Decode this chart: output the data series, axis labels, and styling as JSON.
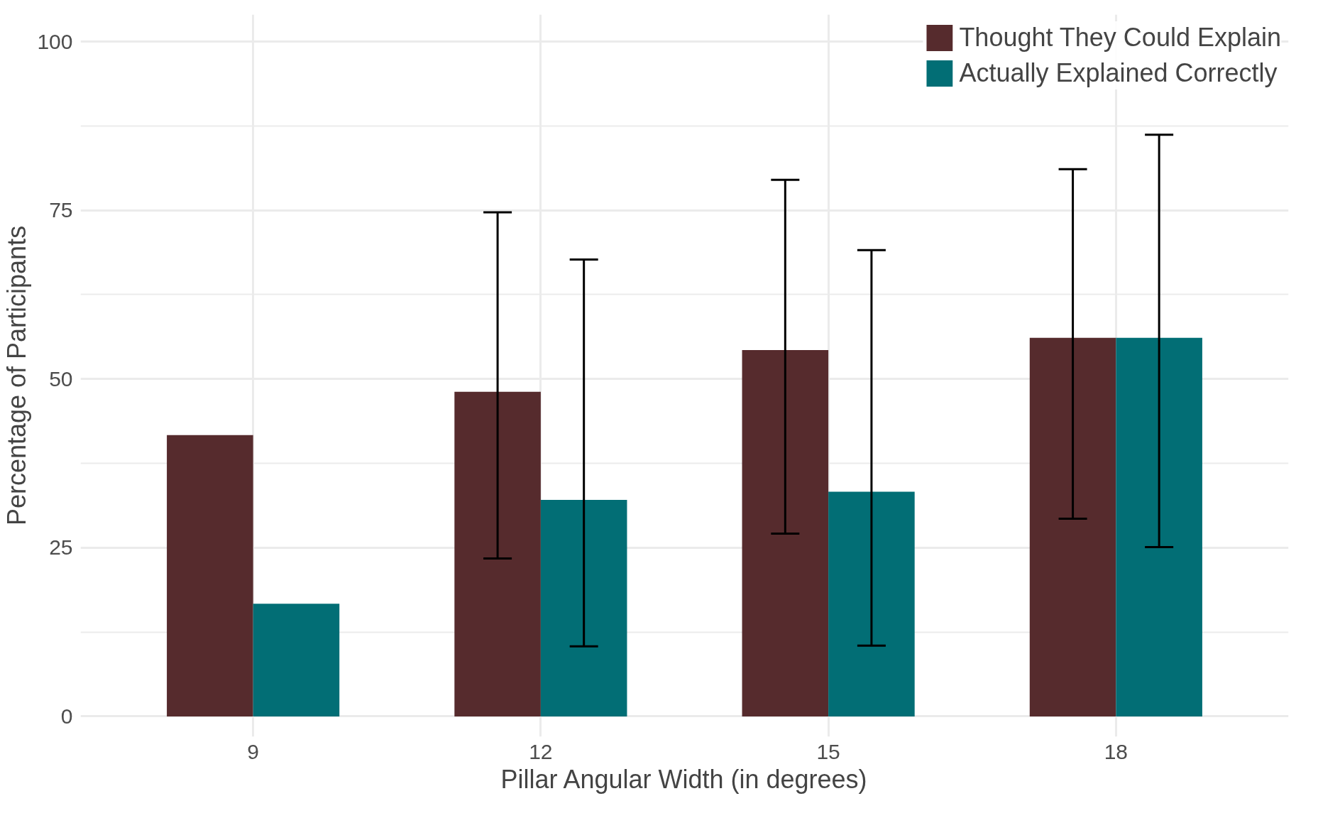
{
  "chart_data": {
    "type": "bar",
    "xlabel": "Pillar Angular Width (in degrees)",
    "ylabel": "Percentage of Participants",
    "categories": [
      "9",
      "12",
      "15",
      "18"
    ],
    "series": [
      {
        "name": "Thought They Could Explain",
        "color": "#562b2d",
        "values": [
          41.7,
          48.1,
          54.3,
          56.1
        ],
        "errors": [
          null,
          [
            23.4,
            74.7
          ],
          [
            27.1,
            79.5
          ],
          [
            29.3,
            81.1
          ]
        ]
      },
      {
        "name": "Actually Explained Correctly",
        "color": "#026e75",
        "values": [
          16.7,
          32.1,
          33.3,
          56.1
        ],
        "errors": [
          null,
          [
            10.4,
            67.7
          ],
          [
            10.5,
            69.1
          ],
          [
            25.1,
            86.2
          ]
        ]
      }
    ],
    "ylim": [
      -3,
      104
    ],
    "yticks": [
      0,
      25,
      50,
      75,
      100
    ],
    "grid": true,
    "legend": "top right"
  }
}
